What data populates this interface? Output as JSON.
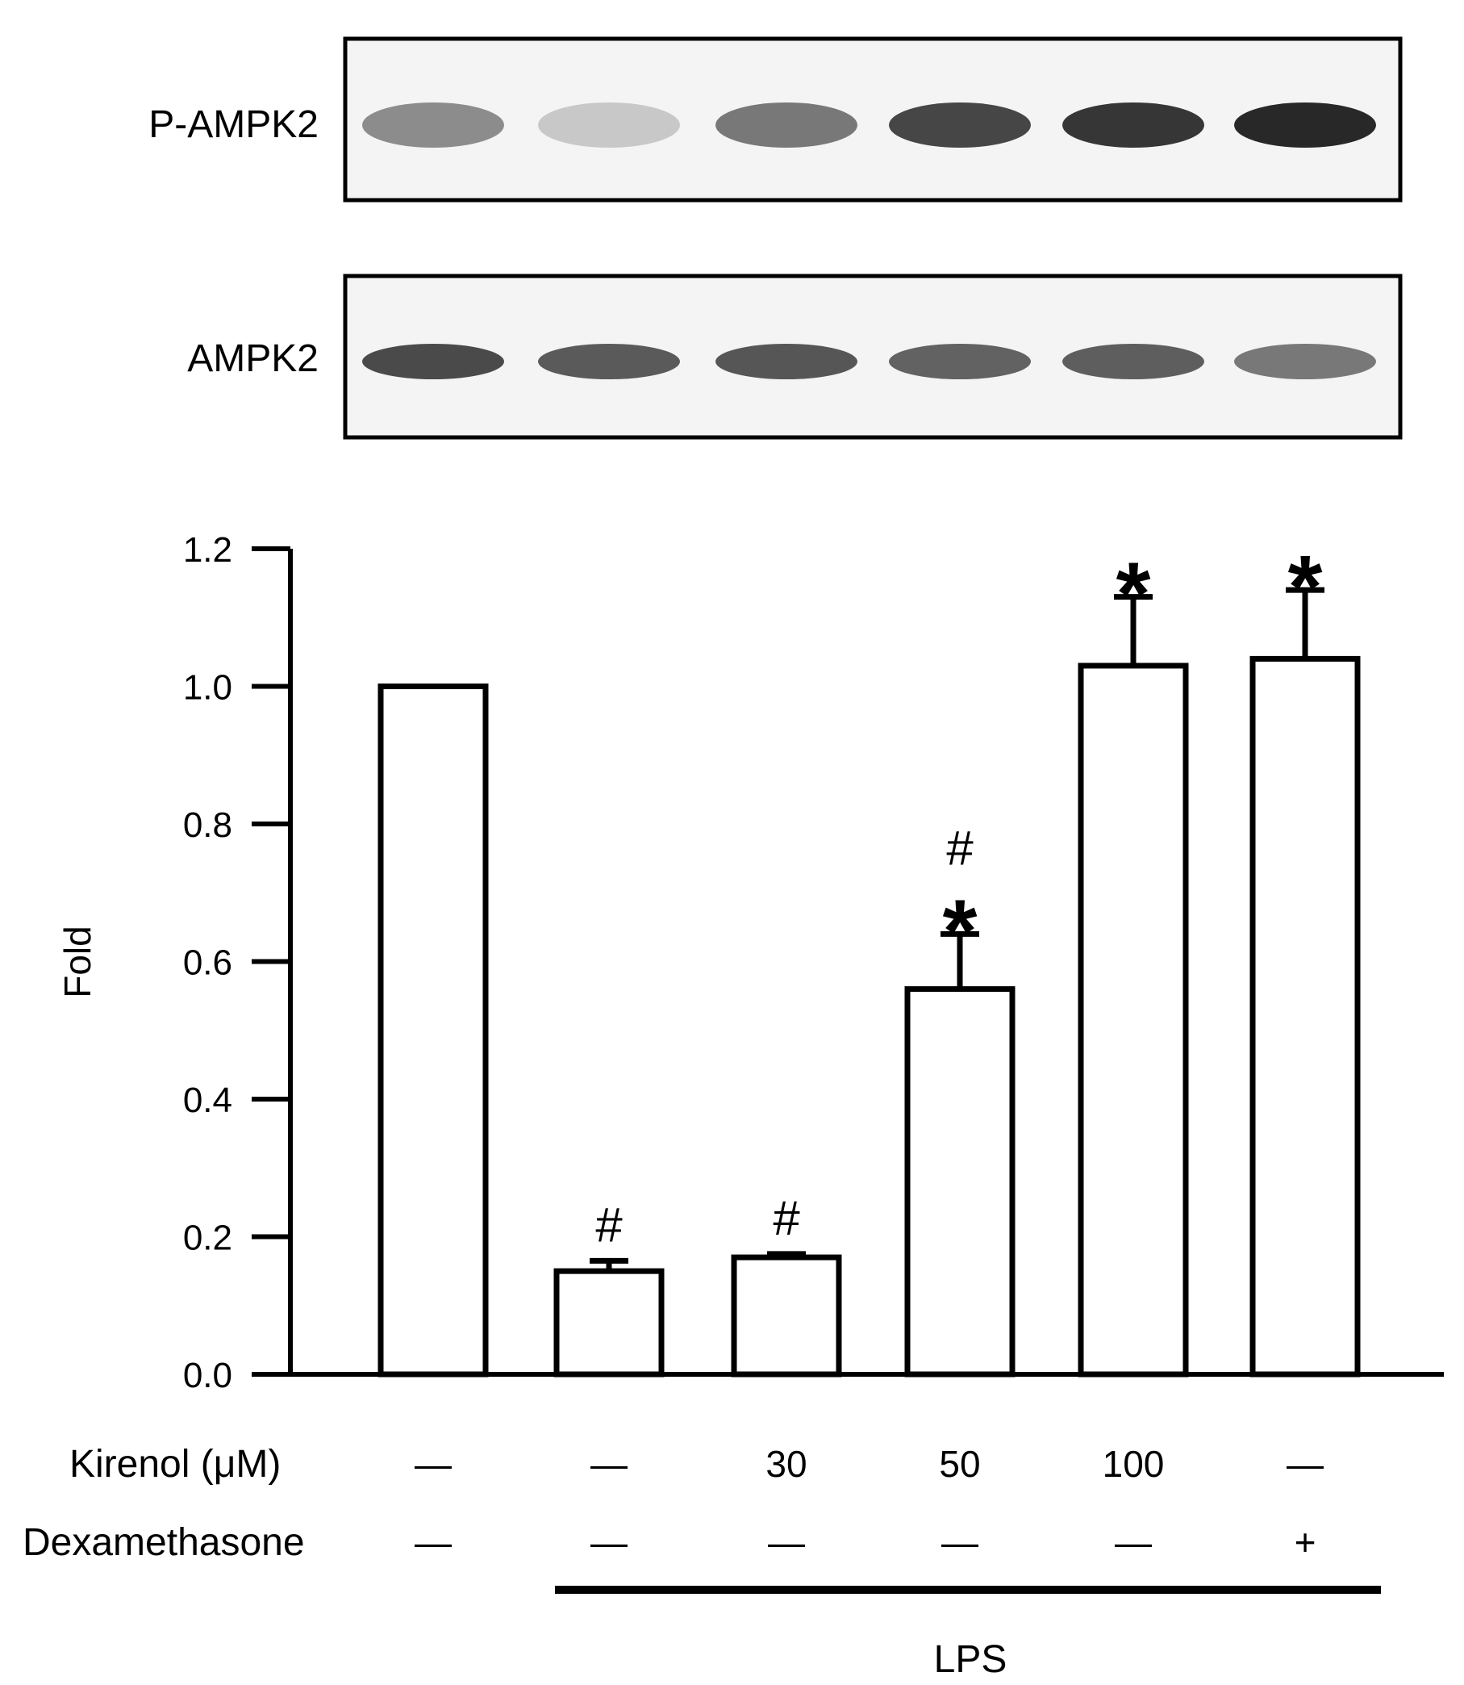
{
  "blots": [
    {
      "label": "P-AMPK2",
      "intensities": [
        0.45,
        0.15,
        0.55,
        0.8,
        0.88,
        0.95
      ]
    },
    {
      "label": "AMPK2",
      "intensities": [
        0.78,
        0.7,
        0.72,
        0.66,
        0.68,
        0.55
      ]
    }
  ],
  "chart_data": {
    "type": "bar",
    "ylabel": "Fold",
    "ylim": [
      0,
      1.2
    ],
    "yticks": [
      "0.0",
      "0.2",
      "0.4",
      "0.6",
      "0.8",
      "1.0",
      "1.2"
    ],
    "values": [
      1.0,
      0.15,
      0.17,
      0.56,
      1.03,
      1.04
    ],
    "errors": [
      0,
      0.015,
      0.005,
      0.08,
      0.1,
      0.1
    ],
    "annotations": [
      "",
      "#",
      "#",
      "#*",
      "*",
      "*"
    ],
    "bar_color": "#ffffff",
    "edge_color": "#000000"
  },
  "conditions": {
    "kirenol_label": "Kirenol (μM)",
    "kirenol": [
      "—",
      "—",
      "30",
      "50",
      "100",
      "—"
    ],
    "dex_label": "Dexamethasone",
    "dex": [
      "—",
      "—",
      "—",
      "—",
      "—",
      "+"
    ],
    "lps_label": "LPS"
  }
}
